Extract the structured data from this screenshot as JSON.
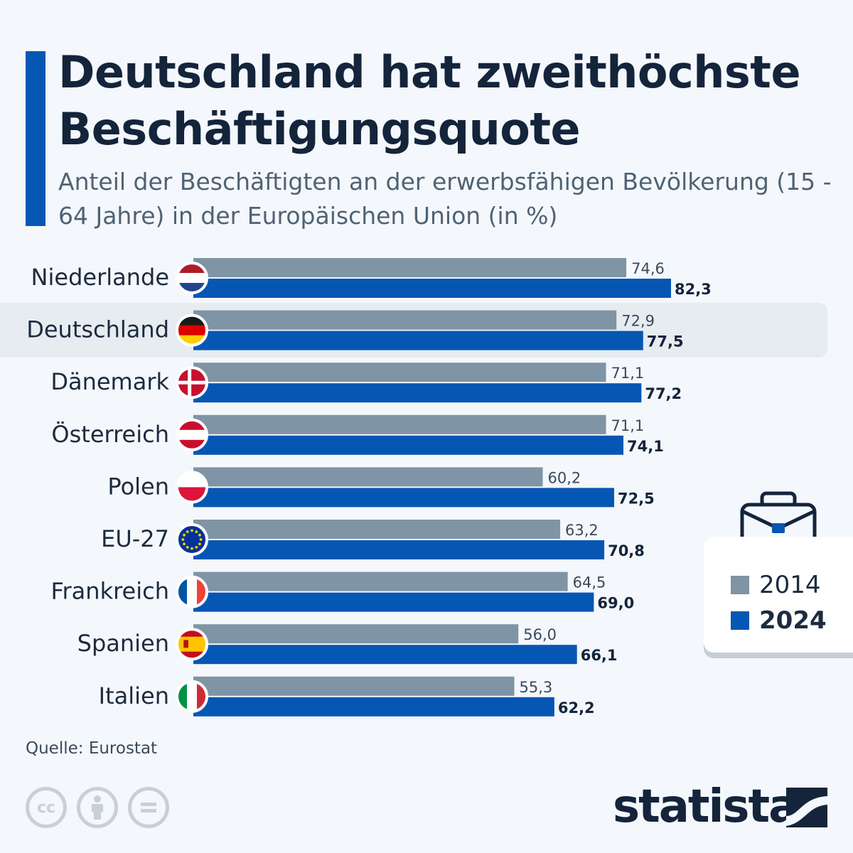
{
  "title": "Deutschland hat zweithöchste Beschäftigungsquote",
  "subtitle": "Anteil der Beschäftigten an der erwerbsfähigen Bevölkerung (15 - 64 Jahre) in der Europäischen Union (in %)",
  "source": "Quelle: Eurostat",
  "brand": "statista",
  "legend": {
    "label_2014": "2014",
    "label_2024": "2024"
  },
  "colors": {
    "bar_2014": "#7f94a4",
    "bar_2024": "#0657b3",
    "accent": "#0657b3",
    "highlight_row": "#e6ecf0"
  },
  "icons": [
    "briefcase-icon",
    "cc-icon",
    "attribution-icon",
    "no-derivatives-icon",
    "statista-logo-icon"
  ],
  "chart_data": {
    "type": "bar",
    "orientation": "horizontal",
    "highlight": "Deutschland",
    "categories": [
      "Niederlande",
      "Deutschland",
      "Dänemark",
      "Österreich",
      "Polen",
      "EU-27",
      "Frankreich",
      "Spanien",
      "Italien"
    ],
    "flags": [
      "nl",
      "de",
      "dk",
      "at",
      "pl",
      "eu",
      "fr",
      "es",
      "it"
    ],
    "series": [
      {
        "name": "2014",
        "values": [
          74.6,
          72.9,
          71.1,
          71.1,
          60.2,
          63.2,
          64.5,
          56.0,
          55.3
        ],
        "labels": [
          "74,6",
          "72,9",
          "71,1",
          "71,1",
          "60,2",
          "63,2",
          "64,5",
          "56,0",
          "55,3"
        ]
      },
      {
        "name": "2024",
        "values": [
          82.3,
          77.5,
          77.2,
          74.1,
          72.5,
          70.8,
          69.0,
          66.1,
          62.2
        ],
        "labels": [
          "82,3",
          "77,5",
          "77,2",
          "74,1",
          "72,5",
          "70,8",
          "69,0",
          "66,1",
          "62,2"
        ]
      }
    ],
    "grid": false,
    "legend_position": "right"
  }
}
